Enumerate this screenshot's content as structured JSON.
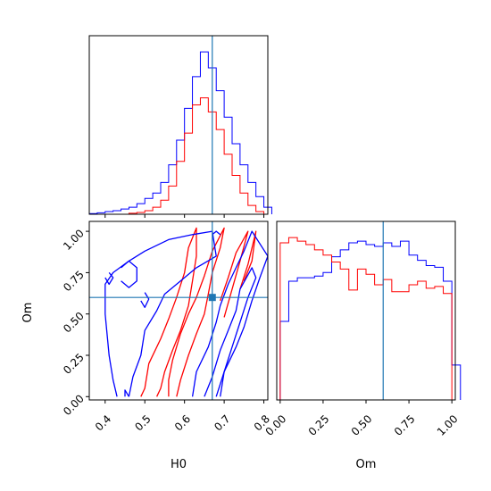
{
  "chart_data": {
    "type": "corner",
    "truth": {
      "H0": 0.67,
      "Om": 0.6
    },
    "colors": {
      "series_a": "#0000ff",
      "series_b": "#ff0000",
      "truth": "#1f77b4"
    },
    "parameters": [
      "H0",
      "Om"
    ],
    "panels": [
      {
        "id": "h0-hist",
        "type": "histogram",
        "xlim": [
          0.36,
          0.81
        ],
        "x_ticks": [
          0.4,
          0.5,
          0.6,
          0.7,
          0.8
        ],
        "series": [
          {
            "color": "#0000ff",
            "bins": [
              [
                0.36,
                0.004
              ],
              [
                0.38,
                0.008
              ],
              [
                0.4,
                0.015
              ],
              [
                0.42,
                0.02
              ],
              [
                0.44,
                0.03
              ],
              [
                0.46,
                0.04
              ],
              [
                0.48,
                0.06
              ],
              [
                0.5,
                0.09
              ],
              [
                0.52,
                0.12
              ],
              [
                0.54,
                0.18
              ],
              [
                0.56,
                0.28
              ],
              [
                0.58,
                0.42
              ],
              [
                0.6,
                0.6
              ],
              [
                0.62,
                0.78
              ],
              [
                0.64,
                0.92
              ],
              [
                0.66,
                0.83
              ],
              [
                0.68,
                0.7
              ],
              [
                0.7,
                0.55
              ],
              [
                0.72,
                0.4
              ],
              [
                0.74,
                0.28
              ],
              [
                0.76,
                0.18
              ],
              [
                0.78,
                0.1
              ],
              [
                0.8,
                0.04
              ]
            ],
            "bin_width": 0.02
          },
          {
            "color": "#ff0000",
            "bins": [
              [
                0.46,
                0.006
              ],
              [
                0.48,
                0.01
              ],
              [
                0.5,
                0.02
              ],
              [
                0.52,
                0.04
              ],
              [
                0.54,
                0.08
              ],
              [
                0.56,
                0.16
              ],
              [
                0.58,
                0.3
              ],
              [
                0.6,
                0.46
              ],
              [
                0.62,
                0.62
              ],
              [
                0.64,
                0.66
              ],
              [
                0.66,
                0.58
              ],
              [
                0.68,
                0.48
              ],
              [
                0.7,
                0.34
              ],
              [
                0.72,
                0.22
              ],
              [
                0.74,
                0.12
              ],
              [
                0.76,
                0.05
              ],
              [
                0.78,
                0.015
              ]
            ],
            "bin_width": 0.02
          }
        ]
      },
      {
        "id": "om-hist",
        "type": "histogram",
        "xlim": [
          -0.02,
          1.02
        ],
        "x_ticks": [
          0.0,
          0.25,
          0.5,
          0.75,
          1.0
        ],
        "x_tick_labels": [
          "0.00",
          "0.25",
          "0.50",
          "0.75",
          "1.00"
        ],
        "xlabel": "Om",
        "series": [
          {
            "color": "#0000ff",
            "bins": [
              [
                0.0,
                0.45
              ],
              [
                0.05,
                0.68
              ],
              [
                0.1,
                0.7
              ],
              [
                0.15,
                0.7
              ],
              [
                0.2,
                0.71
              ],
              [
                0.25,
                0.73
              ],
              [
                0.3,
                0.82
              ],
              [
                0.35,
                0.86
              ],
              [
                0.4,
                0.9
              ],
              [
                0.45,
                0.91
              ],
              [
                0.5,
                0.89
              ],
              [
                0.55,
                0.88
              ],
              [
                0.6,
                0.9
              ],
              [
                0.65,
                0.88
              ],
              [
                0.7,
                0.91
              ],
              [
                0.75,
                0.83
              ],
              [
                0.8,
                0.8
              ],
              [
                0.85,
                0.77
              ],
              [
                0.9,
                0.76
              ],
              [
                0.95,
                0.68
              ],
              [
                1.0,
                0.2
              ]
            ],
            "bin_width": 0.05
          },
          {
            "color": "#ff0000",
            "bins": [
              [
                0.0,
                0.9
              ],
              [
                0.05,
                0.93
              ],
              [
                0.1,
                0.91
              ],
              [
                0.15,
                0.89
              ],
              [
                0.2,
                0.86
              ],
              [
                0.25,
                0.83
              ],
              [
                0.3,
                0.79
              ],
              [
                0.35,
                0.75
              ],
              [
                0.4,
                0.63
              ],
              [
                0.45,
                0.75
              ],
              [
                0.5,
                0.72
              ],
              [
                0.55,
                0.66
              ],
              [
                0.6,
                0.69
              ],
              [
                0.65,
                0.62
              ],
              [
                0.7,
                0.62
              ],
              [
                0.75,
                0.66
              ],
              [
                0.8,
                0.68
              ],
              [
                0.85,
                0.64
              ],
              [
                0.9,
                0.65
              ],
              [
                0.95,
                0.61
              ]
            ],
            "bin_width": 0.05
          }
        ]
      },
      {
        "id": "joint",
        "type": "contour",
        "xlabel": "H0",
        "ylabel": "Om",
        "xlim": [
          0.36,
          0.81
        ],
        "ylim": [
          -0.02,
          1.06
        ],
        "x_ticks": [
          0.4,
          0.5,
          0.6,
          0.7,
          0.8
        ],
        "y_ticks": [
          0.0,
          0.25,
          0.5,
          0.75,
          1.0
        ],
        "y_tick_labels": [
          "0.00",
          "0.25",
          "0.50",
          "0.75",
          "1.00"
        ],
        "contours": [
          {
            "color": "#ff0000",
            "points": [
              [
                0.53,
                0.0
              ],
              [
                0.54,
                0.05
              ],
              [
                0.55,
                0.15
              ],
              [
                0.57,
                0.28
              ],
              [
                0.59,
                0.4
              ],
              [
                0.61,
                0.55
              ],
              [
                0.62,
                0.7
              ],
              [
                0.63,
                0.85
              ],
              [
                0.63,
                1.02
              ],
              [
                0.61,
                0.9
              ],
              [
                0.6,
                0.75
              ],
              [
                0.58,
                0.6
              ],
              [
                0.56,
                0.47
              ],
              [
                0.54,
                0.35
              ],
              [
                0.51,
                0.2
              ],
              [
                0.5,
                0.05
              ],
              [
                0.49,
                0.0
              ]
            ]
          },
          {
            "color": "#ff0000",
            "points": [
              [
                0.58,
                0.0
              ],
              [
                0.59,
                0.1
              ],
              [
                0.61,
                0.25
              ],
              [
                0.63,
                0.38
              ],
              [
                0.65,
                0.5
              ],
              [
                0.66,
                0.62
              ],
              [
                0.67,
                0.75
              ],
              [
                0.69,
                0.9
              ],
              [
                0.7,
                1.02
              ],
              [
                0.67,
                0.88
              ],
              [
                0.65,
                0.73
              ],
              [
                0.63,
                0.6
              ],
              [
                0.61,
                0.5
              ],
              [
                0.59,
                0.38
              ],
              [
                0.57,
                0.22
              ],
              [
                0.56,
                0.1
              ],
              [
                0.56,
                0.0
              ]
            ]
          },
          {
            "color": "#ff0000",
            "points": [
              [
                0.7,
                0.48
              ],
              [
                0.72,
                0.65
              ],
              [
                0.74,
                0.82
              ],
              [
                0.76,
                1.0
              ],
              [
                0.73,
                0.87
              ],
              [
                0.71,
                0.72
              ],
              [
                0.69,
                0.58
              ]
            ]
          },
          {
            "color": "#ff0000",
            "points": [
              [
                0.74,
                0.65
              ],
              [
                0.76,
                0.8
              ],
              [
                0.78,
                1.0
              ],
              [
                0.77,
                0.82
              ],
              [
                0.75,
                0.7
              ]
            ]
          },
          {
            "color": "#0000ff",
            "points": [
              [
                0.43,
                0.0
              ],
              [
                0.42,
                0.1
              ],
              [
                0.41,
                0.25
              ],
              [
                0.4,
                0.5
              ],
              [
                0.4,
                0.68
              ],
              [
                0.42,
                0.75
              ],
              [
                0.46,
                0.82
              ],
              [
                0.5,
                0.88
              ],
              [
                0.56,
                0.95
              ],
              [
                0.62,
                0.98
              ],
              [
                0.67,
                1.0
              ],
              [
                0.68,
                0.85
              ],
              [
                0.63,
                0.78
              ],
              [
                0.59,
                0.7
              ],
              [
                0.55,
                0.62
              ],
              [
                0.53,
                0.52
              ],
              [
                0.5,
                0.4
              ],
              [
                0.49,
                0.25
              ],
              [
                0.47,
                0.12
              ],
              [
                0.46,
                0.0
              ]
            ]
          },
          {
            "color": "#0000ff",
            "points": [
              [
                0.62,
                0.0
              ],
              [
                0.63,
                0.15
              ],
              [
                0.66,
                0.3
              ],
              [
                0.68,
                0.45
              ],
              [
                0.69,
                0.55
              ],
              [
                0.71,
                0.68
              ],
              [
                0.73,
                0.78
              ],
              [
                0.75,
                0.88
              ],
              [
                0.77,
                1.0
              ],
              [
                0.81,
                0.85
              ],
              [
                0.79,
                0.72
              ],
              [
                0.77,
                0.58
              ],
              [
                0.75,
                0.42
              ],
              [
                0.73,
                0.3
              ],
              [
                0.7,
                0.15
              ],
              [
                0.68,
                0.0
              ]
            ]
          },
          {
            "color": "#0000ff",
            "points": [
              [
                0.65,
                0.0
              ],
              [
                0.67,
                0.12
              ],
              [
                0.69,
                0.28
              ],
              [
                0.71,
                0.4
              ],
              [
                0.73,
                0.52
              ],
              [
                0.74,
                0.65
              ],
              [
                0.77,
                0.78
              ],
              [
                0.78,
                0.72
              ],
              [
                0.76,
                0.6
              ],
              [
                0.74,
                0.45
              ],
              [
                0.72,
                0.3
              ],
              [
                0.7,
                0.15
              ],
              [
                0.69,
                0.0
              ]
            ]
          },
          {
            "color": "#0000ff",
            "points": [
              [
                0.4,
                0.72
              ],
              [
                0.41,
                0.68
              ],
              [
                0.42,
                0.72
              ],
              [
                0.41,
                0.75
              ]
            ]
          },
          {
            "color": "#0000ff",
            "points": [
              [
                0.49,
                0.58
              ],
              [
                0.5,
                0.54
              ],
              [
                0.51,
                0.59
              ],
              [
                0.5,
                0.63
              ]
            ]
          },
          {
            "color": "#0000ff",
            "points": [
              [
                0.44,
                0.7
              ],
              [
                0.46,
                0.66
              ],
              [
                0.48,
                0.7
              ],
              [
                0.48,
                0.78
              ],
              [
                0.46,
                0.82
              ],
              [
                0.44,
                0.78
              ]
            ]
          },
          {
            "color": "#0000ff",
            "points": [
              [
                0.45,
                0.0
              ],
              [
                0.45,
                0.04
              ],
              [
                0.46,
                0.0
              ]
            ]
          },
          {
            "color": "#0000ff",
            "points": [
              [
                0.67,
                0.98
              ],
              [
                0.68,
                1.0
              ],
              [
                0.69,
                0.98
              ]
            ]
          }
        ]
      }
    ]
  }
}
